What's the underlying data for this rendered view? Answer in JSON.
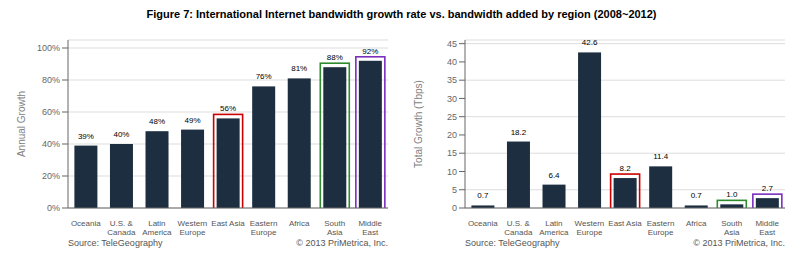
{
  "chart_data": [
    {
      "type": "bar",
      "title": "Figure 7: International Internet bandwidth growth rate vs. bandwidth added by region (2008~2012)",
      "categories": [
        "Oceania",
        "U.S. &\nCanada",
        "Latin\nAmerica",
        "Western\nEurope",
        "East Asia",
        "Eastern\nEurope",
        "Africa",
        "South\nAsia",
        "Middle\nEast"
      ],
      "values": [
        0.39,
        0.4,
        0.48,
        0.49,
        0.56,
        0.76,
        0.81,
        0.88,
        0.92
      ],
      "value_labels": [
        "39%",
        "40%",
        "48%",
        "49%",
        "56%",
        "76%",
        "81%",
        "88%",
        "92%"
      ],
      "data_labels": true,
      "color": "#1c2e40",
      "ylabel": "Annual Growth",
      "ylim": [
        0,
        1.05
      ],
      "yticks": [
        {
          "value": 0,
          "label": "0%"
        },
        {
          "value": 0.2,
          "label": "20%"
        },
        {
          "value": 0.4,
          "label": "40%"
        },
        {
          "value": 0.6,
          "label": "60%"
        },
        {
          "value": 0.8,
          "label": "80%"
        },
        {
          "value": 1.0,
          "label": "100%"
        }
      ],
      "grid": true,
      "annotations": [
        "Source: TeleGeography",
        "© 2013 PriMetrica, Inc."
      ],
      "highlights": [
        {
          "category": "East Asia",
          "color": "#cc0000"
        },
        {
          "category": "South\nAsia",
          "color": "#2e8b2e"
        },
        {
          "category": "Middle\nEast",
          "color": "#7b2fbe"
        }
      ]
    },
    {
      "type": "bar",
      "categories": [
        "Oceania",
        "U.S. &\nCanada",
        "Latin\nAmerica",
        "Western\nEurope",
        "East Asia",
        "Eastern\nEurope",
        "Africa",
        "South\nAsia",
        "Middle\nEast"
      ],
      "values": [
        0.7,
        18.2,
        6.4,
        42.6,
        8.2,
        11.4,
        0.7,
        1.0,
        2.7
      ],
      "value_labels": [
        "0.7",
        "18.2",
        "6.4",
        "42.6",
        "8.2",
        "11.4",
        "0.7",
        "1.0",
        "2.7"
      ],
      "data_labels": true,
      "color": "#1c2e40",
      "ylabel": "Total Growth (Tbps)",
      "ylim": [
        0,
        46
      ],
      "yticks": [
        0,
        5,
        10,
        15,
        20,
        25,
        30,
        35,
        40,
        45
      ],
      "grid": true,
      "annotations": [
        "Source: TeleGeography",
        "© 2013 PriMetrica, Inc."
      ],
      "highlights": [
        {
          "category": "East Asia",
          "color": "#cc0000"
        },
        {
          "category": "South\nAsia",
          "color": "#2e8b2e"
        },
        {
          "category": "Middle\nEast",
          "color": "#7b2fbe"
        }
      ]
    }
  ]
}
